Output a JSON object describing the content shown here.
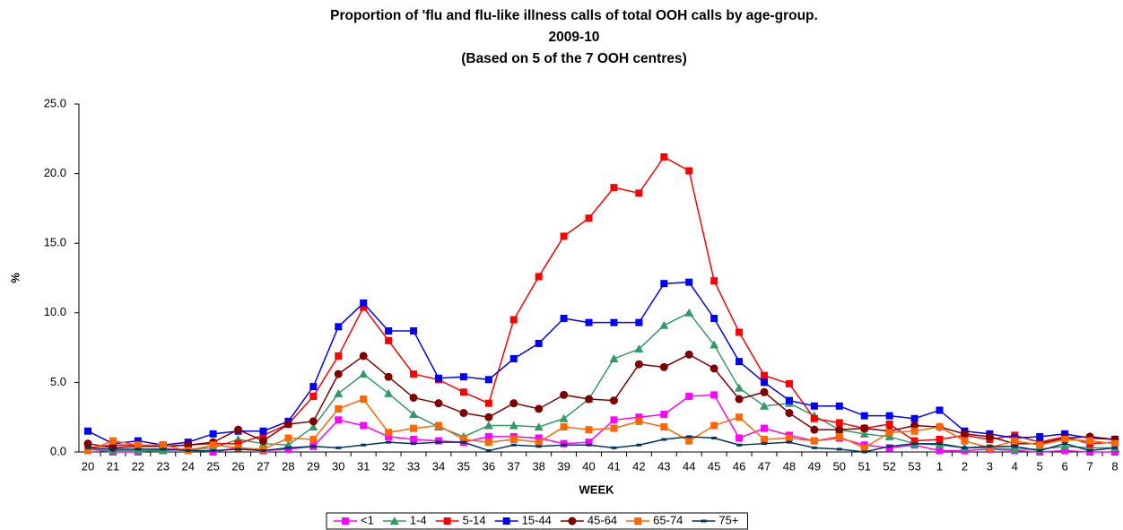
{
  "chart_data": {
    "type": "line",
    "title": [
      "Proportion of 'flu and flu-like illness calls of total OOH calls by age-group.",
      "2009-10",
      "(Based on 5 of the 7 OOH centres)"
    ],
    "x_label": "WEEK",
    "y_label": "%",
    "categories": [
      "20",
      "21",
      "22",
      "23",
      "24",
      "25",
      "26",
      "27",
      "28",
      "29",
      "30",
      "31",
      "32",
      "33",
      "34",
      "35",
      "36",
      "37",
      "38",
      "39",
      "40",
      "41",
      "42",
      "43",
      "44",
      "45",
      "46",
      "47",
      "48",
      "49",
      "50",
      "51",
      "52",
      "53",
      "1",
      "2",
      "3",
      "4",
      "5",
      "6",
      "7",
      "8"
    ],
    "ylim": [
      0,
      25
    ],
    "yticks": [
      {
        "value": 0,
        "label": "0.0"
      },
      {
        "value": 5,
        "label": "5.0"
      },
      {
        "value": 10,
        "label": "10.0"
      },
      {
        "value": 15,
        "label": "15.0"
      },
      {
        "value": 20,
        "label": "20.0"
      },
      {
        "value": 25,
        "label": "25.0"
      }
    ],
    "grid": false,
    "legend": "bottom",
    "series": [
      {
        "name": "<1",
        "color": "#ff00ff",
        "marker": "square",
        "values": [
          0.2,
          0.0,
          0.0,
          0.2,
          0.2,
          0.0,
          0.3,
          0.1,
          0.2,
          0.4,
          2.3,
          1.9,
          1.1,
          0.9,
          0.8,
          0.7,
          1.1,
          1.1,
          1.0,
          0.6,
          0.7,
          2.3,
          2.5,
          2.7,
          4.0,
          4.1,
          1.0,
          1.7,
          1.2,
          0.8,
          1.0,
          0.5,
          0.3,
          0.5,
          0.1,
          0.1,
          0.2,
          0.1,
          0.0,
          0.1,
          0.0,
          0.0
        ]
      },
      {
        "name": "1-4",
        "color": "#339966",
        "marker": "triangle",
        "values": [
          0.2,
          0.1,
          0.1,
          0.1,
          0.2,
          0.3,
          0.9,
          0.6,
          0.5,
          1.8,
          4.2,
          5.6,
          4.2,
          2.7,
          1.8,
          1.1,
          1.9,
          1.9,
          1.8,
          2.4,
          3.8,
          6.7,
          7.4,
          9.1,
          10.0,
          7.7,
          4.6,
          3.3,
          3.5,
          2.6,
          1.6,
          1.3,
          1.1,
          0.6,
          0.5,
          0.3,
          0.3,
          0.2,
          0.2,
          0.4,
          0.3,
          0.3
        ]
      },
      {
        "name": "5-14",
        "color": "#ff0000",
        "marker": "square",
        "values": [
          0.3,
          0.5,
          0.5,
          0.4,
          0.5,
          0.6,
          0.6,
          1.2,
          2.0,
          4.0,
          6.9,
          10.4,
          8.0,
          5.6,
          5.2,
          4.3,
          3.5,
          9.5,
          12.6,
          15.5,
          16.8,
          19.0,
          18.6,
          21.2,
          20.2,
          12.3,
          8.6,
          5.5,
          4.9,
          2.4,
          2.1,
          1.7,
          2.0,
          0.8,
          0.9,
          1.2,
          0.9,
          1.2,
          0.7,
          1.1,
          0.6,
          0.7
        ]
      },
      {
        "name": "15-44",
        "color": "#0000ff",
        "marker": "square",
        "values": [
          1.5,
          0.6,
          0.8,
          0.5,
          0.7,
          1.3,
          1.5,
          1.5,
          2.2,
          4.7,
          9.0,
          10.7,
          8.7,
          8.7,
          5.3,
          5.4,
          5.2,
          6.7,
          7.8,
          9.6,
          9.3,
          9.3,
          9.3,
          12.1,
          12.2,
          9.6,
          6.5,
          5.0,
          3.7,
          3.3,
          3.3,
          2.6,
          2.6,
          2.4,
          3.0,
          1.5,
          1.3,
          1.0,
          1.1,
          1.3,
          1.0,
          0.9
        ]
      },
      {
        "name": "45-64",
        "color": "#800000",
        "marker": "circle",
        "values": [
          0.6,
          0.3,
          0.4,
          0.4,
          0.5,
          0.7,
          1.6,
          0.8,
          2.0,
          2.2,
          5.6,
          6.9,
          5.4,
          3.9,
          3.5,
          2.8,
          2.5,
          3.5,
          3.1,
          4.1,
          3.8,
          3.7,
          6.3,
          6.1,
          7.0,
          6.0,
          3.8,
          4.3,
          2.8,
          1.6,
          1.6,
          1.7,
          1.5,
          1.9,
          1.8,
          1.3,
          1.1,
          0.6,
          0.6,
          1.0,
          1.1,
          0.9
        ]
      },
      {
        "name": "65-74",
        "color": "#ff6600",
        "marker": "square",
        "values": [
          0.1,
          0.8,
          0.5,
          0.5,
          0.1,
          0.5,
          0.3,
          0.2,
          1.0,
          0.9,
          3.1,
          3.8,
          1.4,
          1.7,
          1.9,
          0.9,
          0.7,
          0.9,
          0.7,
          1.8,
          1.6,
          1.7,
          2.2,
          1.8,
          0.8,
          1.9,
          2.5,
          0.9,
          1.0,
          0.8,
          1.1,
          0.3,
          1.4,
          1.5,
          1.8,
          0.8,
          0.3,
          0.8,
          0.5,
          0.9,
          0.8,
          0.6
        ]
      },
      {
        "name": "75+",
        "color": "#003366",
        "marker": "dash",
        "values": [
          0.3,
          0.2,
          0.2,
          0.2,
          0.1,
          0.1,
          0.2,
          0.1,
          0.3,
          0.4,
          0.3,
          0.5,
          0.7,
          0.6,
          0.7,
          0.7,
          0.1,
          0.5,
          0.4,
          0.5,
          0.5,
          0.3,
          0.5,
          0.9,
          1.1,
          1.0,
          0.5,
          0.6,
          0.7,
          0.3,
          0.2,
          0.0,
          0.4,
          0.6,
          0.6,
          0.3,
          0.4,
          0.4,
          0.1,
          0.6,
          0.1,
          0.3
        ]
      }
    ]
  }
}
